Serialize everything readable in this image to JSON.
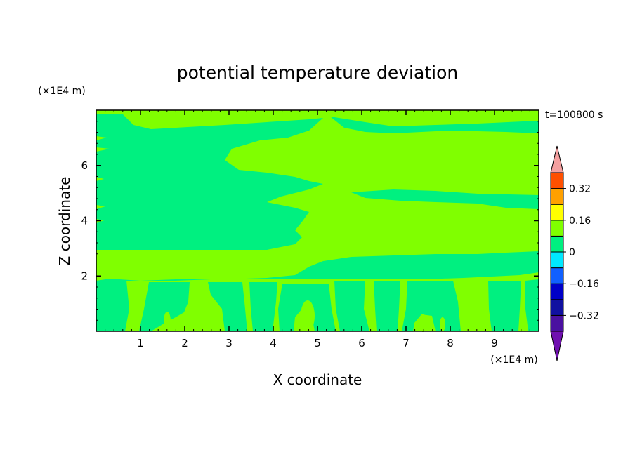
{
  "chart_data": {
    "type": "heatmap",
    "title": "potential temperature deviation",
    "xlabel": "X coordinate",
    "ylabel": "Z coordinate",
    "x_unit": "(×1E4 m)",
    "y_unit": "(×1E4 m)",
    "time_label": "t=100800 s",
    "xlim": [
      0,
      10
    ],
    "ylim": [
      0,
      8
    ],
    "x_ticks": [
      1,
      2,
      3,
      4,
      5,
      6,
      7,
      8,
      9
    ],
    "y_ticks": [
      2,
      4,
      6
    ],
    "x_tick_labels": [
      "1",
      "2",
      "3",
      "4",
      "5",
      "6",
      "7",
      "8",
      "9"
    ],
    "y_tick_labels": [
      "2",
      "4",
      "6"
    ],
    "colorbar": {
      "levels": [
        -0.4,
        -0.32,
        -0.24,
        -0.16,
        -0.08,
        0,
        0.08,
        0.16,
        0.24,
        0.32,
        0.4
      ],
      "colors": [
        "#4a10a0",
        "#1010a0",
        "#0000c8",
        "#1060ff",
        "#00e8ff",
        "#00f080",
        "#80ff00",
        "#ffff00",
        "#ffa000",
        "#ff5000",
        "#e01010"
      ],
      "under_color": "#7010b0",
      "over_color": "#f4a0a0",
      "tick_values": [
        -0.32,
        -0.16,
        0,
        0.16,
        0.32
      ],
      "tick_labels": [
        "−0.32",
        "−0.16",
        "0",
        "0.16",
        "0.32"
      ]
    },
    "fields": {
      "positive_0_to_0.08": "#80ff00",
      "negative_-0.08_to_0": "#00f080"
    }
  }
}
